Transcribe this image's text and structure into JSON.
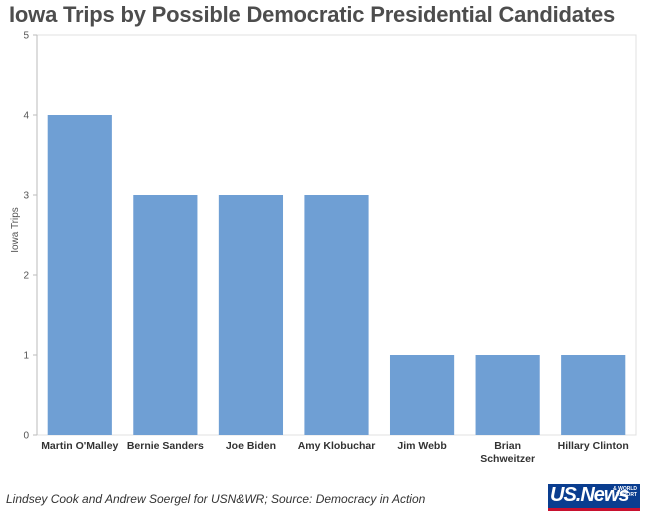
{
  "chart_data": {
    "type": "bar",
    "title": "Iowa Trips by Possible Democratic Presidential Candidates",
    "ylabel": "Iowa Trips",
    "xlabel": "",
    "categories": [
      "Martin O'Malley",
      "Bernie Sanders",
      "Joe Biden",
      "Amy Klobuchar",
      "Jim Webb",
      "Brian Schweitzer",
      "Hillary Clinton"
    ],
    "category_lines": [
      [
        "Martin O'Malley"
      ],
      [
        "Bernie Sanders"
      ],
      [
        "Joe Biden"
      ],
      [
        "Amy Klobuchar"
      ],
      [
        "Jim Webb"
      ],
      [
        "Brian",
        "Schweitzer"
      ],
      [
        "Hillary Clinton"
      ]
    ],
    "values": [
      4,
      3,
      3,
      3,
      1,
      1,
      1
    ],
    "ylim": [
      0,
      5
    ],
    "yticks": [
      "0",
      "1",
      "2",
      "3",
      "4",
      "5"
    ],
    "grid": false,
    "bar_color": "#6f9fd4"
  },
  "footer": {
    "credit": "Lindsey Cook and Andrew Soergel for USN&WR; Source: Democracy in Action"
  },
  "logo": {
    "text": "US.News",
    "subtext": "& WORLD REPORT"
  }
}
